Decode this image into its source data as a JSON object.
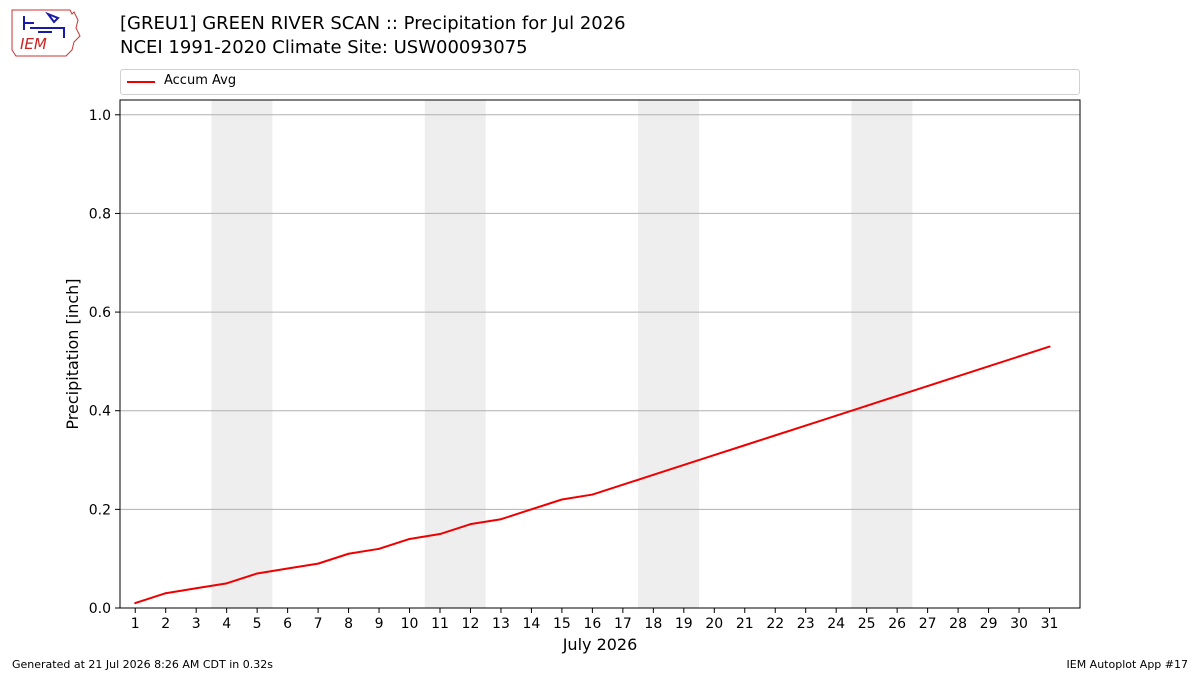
{
  "logo": {
    "text": "IEM"
  },
  "header": {
    "title_line1": "[GREU1] GREEN RIVER SCAN :: Precipitation for Jul 2026",
    "title_line2": "NCEI 1991-2020 Climate Site: USW00093075"
  },
  "footer": {
    "left": "Generated at 21 Jul 2026 8:26 AM CDT in 0.32s",
    "right": "IEM Autoplot App #17"
  },
  "colors": {
    "line": "#ee0000",
    "weekend_band": "#eeeeee",
    "grid": "#b0b0b0"
  },
  "chart_data": {
    "type": "line",
    "xlabel": "July 2026",
    "ylabel": "Precipitation [inch]",
    "xlim": [
      0.5,
      32
    ],
    "ylim": [
      0,
      1.03
    ],
    "yticks": [
      0.0,
      0.2,
      0.4,
      0.6,
      0.8,
      1.0
    ],
    "ytick_labels": [
      "0.0",
      "0.2",
      "0.4",
      "0.6",
      "0.8",
      "1.0"
    ],
    "xticks": [
      1,
      2,
      3,
      4,
      5,
      6,
      7,
      8,
      9,
      10,
      11,
      12,
      13,
      14,
      15,
      16,
      17,
      18,
      19,
      20,
      21,
      22,
      23,
      24,
      25,
      26,
      27,
      28,
      29,
      30,
      31
    ],
    "grid": "horizontal",
    "legend_position": "top",
    "shaded_days": [
      [
        4,
        5
      ],
      [
        11,
        12
      ],
      [
        18,
        19
      ],
      [
        25,
        26
      ]
    ],
    "series": [
      {
        "name": "Accum Avg",
        "x": [
          1,
          2,
          3,
          4,
          5,
          6,
          7,
          8,
          9,
          10,
          11,
          12,
          13,
          14,
          15,
          16,
          17,
          18,
          19,
          20,
          21,
          22,
          23,
          24,
          25,
          26,
          27,
          28,
          29,
          30,
          31
        ],
        "values": [
          0.01,
          0.03,
          0.04,
          0.05,
          0.07,
          0.08,
          0.09,
          0.11,
          0.12,
          0.14,
          0.15,
          0.17,
          0.18,
          0.2,
          0.22,
          0.23,
          0.25,
          0.27,
          0.29,
          0.31,
          0.33,
          0.35,
          0.37,
          0.39,
          0.41,
          0.43,
          0.45,
          0.47,
          0.49,
          0.51,
          0.53
        ]
      }
    ]
  }
}
